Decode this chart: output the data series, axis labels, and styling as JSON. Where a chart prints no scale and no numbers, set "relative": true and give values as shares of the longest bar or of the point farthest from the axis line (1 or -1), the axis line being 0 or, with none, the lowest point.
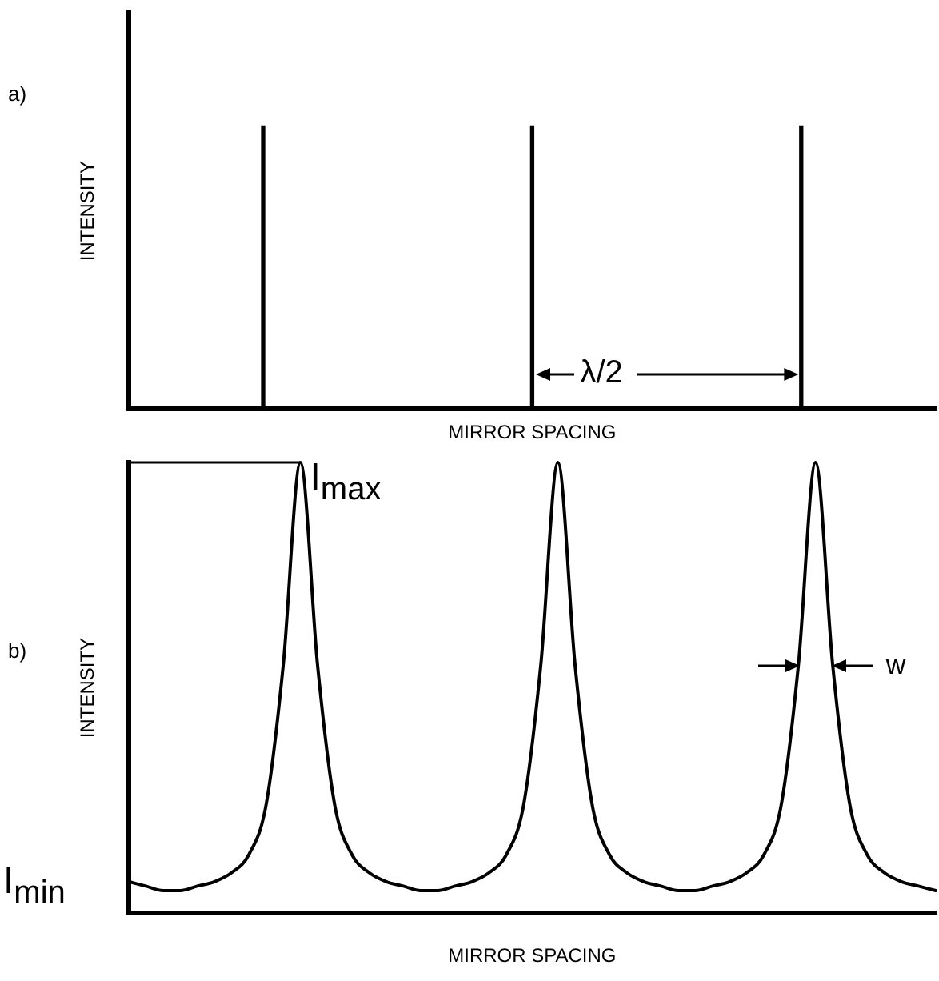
{
  "chart_data": [
    {
      "type": "bar",
      "relative": true,
      "xlabel": "MIRROR SPACING",
      "ylabel": "INTENSITY",
      "color": "#000000",
      "categories": [
        null,
        null,
        null
      ],
      "values": [
        1,
        1,
        1
      ],
      "annotations": [
        "a)",
        "λ/2"
      ]
    },
    {
      "type": "line",
      "relative": true,
      "xlabel": "MIRROR SPACING",
      "ylabel": "INTENSITY",
      "color": "#000000",
      "marker": "none",
      "categories": [
        null,
        null,
        null,
        null,
        null,
        null,
        null,
        null,
        null,
        null,
        null,
        null,
        null,
        null,
        null,
        null,
        null,
        null,
        null,
        null,
        null,
        null,
        null,
        null,
        null,
        null,
        null,
        null,
        null,
        null,
        null,
        null,
        null,
        null,
        null,
        null,
        null,
        null,
        null,
        null,
        null,
        null,
        null,
        null,
        null,
        null,
        null,
        null
      ],
      "values": [
        0.07,
        0.06,
        0.05,
        0.05,
        0.06,
        0.07,
        0.09,
        0.13,
        0.24,
        0.55,
        1,
        0.55,
        0.24,
        0.13,
        0.09,
        0.07,
        0.06,
        0.05,
        0.05,
        0.06,
        0.07,
        0.09,
        0.13,
        0.24,
        0.55,
        1,
        0.55,
        0.24,
        0.13,
        0.09,
        0.07,
        0.06,
        0.05,
        0.05,
        0.06,
        0.07,
        0.09,
        0.13,
        0.24,
        0.55,
        1,
        0.55,
        0.24,
        0.13,
        0.09,
        0.07,
        0.06,
        0.05
      ],
      "ref_lines": [
        {
          "axis": "y",
          "value": 1,
          "label": "I$_{max}$"
        }
      ],
      "annotations": [
        "b)",
        "I$_{min}$",
        "w"
      ]
    }
  ]
}
